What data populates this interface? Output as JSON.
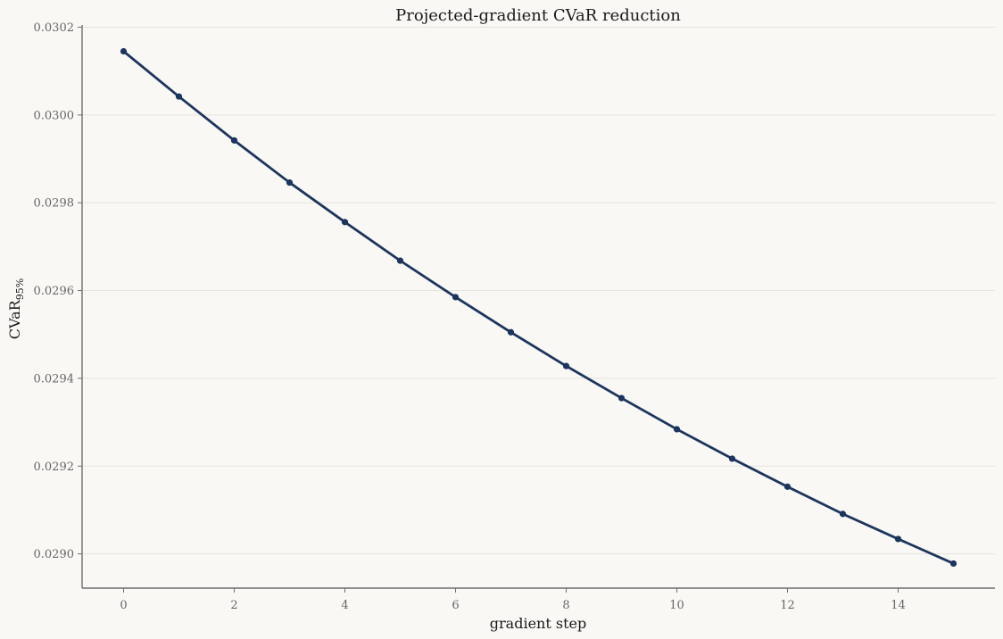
{
  "chart_data": {
    "type": "line",
    "title": "Projected-gradient CVaR reduction",
    "xlabel": "gradient step",
    "ylabel_main": "CVaR",
    "ylabel_sub": "95%",
    "x": [
      0,
      1,
      2,
      3,
      4,
      5,
      6,
      7,
      8,
      9,
      10,
      11,
      12,
      13,
      14,
      15
    ],
    "series": [
      {
        "values": [
          0.030145,
          0.030042,
          0.029942,
          0.029846,
          0.029756,
          0.029668,
          0.029585,
          0.029505,
          0.029428,
          0.029355,
          0.029284,
          0.029217,
          0.029153,
          0.029091,
          0.029034,
          0.028978
        ],
        "color": "#1c355e"
      }
    ],
    "xlim": [
      -0.75,
      15.75
    ],
    "ylim": [
      0.028922,
      0.030205
    ],
    "xticks": [
      0,
      2,
      4,
      6,
      8,
      10,
      12,
      14
    ],
    "xtick_labels": [
      "0",
      "2",
      "4",
      "6",
      "8",
      "10",
      "12",
      "14"
    ],
    "yticks": [
      0.029,
      0.0292,
      0.0294,
      0.0296,
      0.0298,
      0.03,
      0.0302
    ],
    "ytick_labels": [
      "0.0290",
      "0.0292",
      "0.0294",
      "0.0296",
      "0.0298",
      "0.0300",
      "0.0302"
    ],
    "grid": "horizontal",
    "legend": "none"
  }
}
